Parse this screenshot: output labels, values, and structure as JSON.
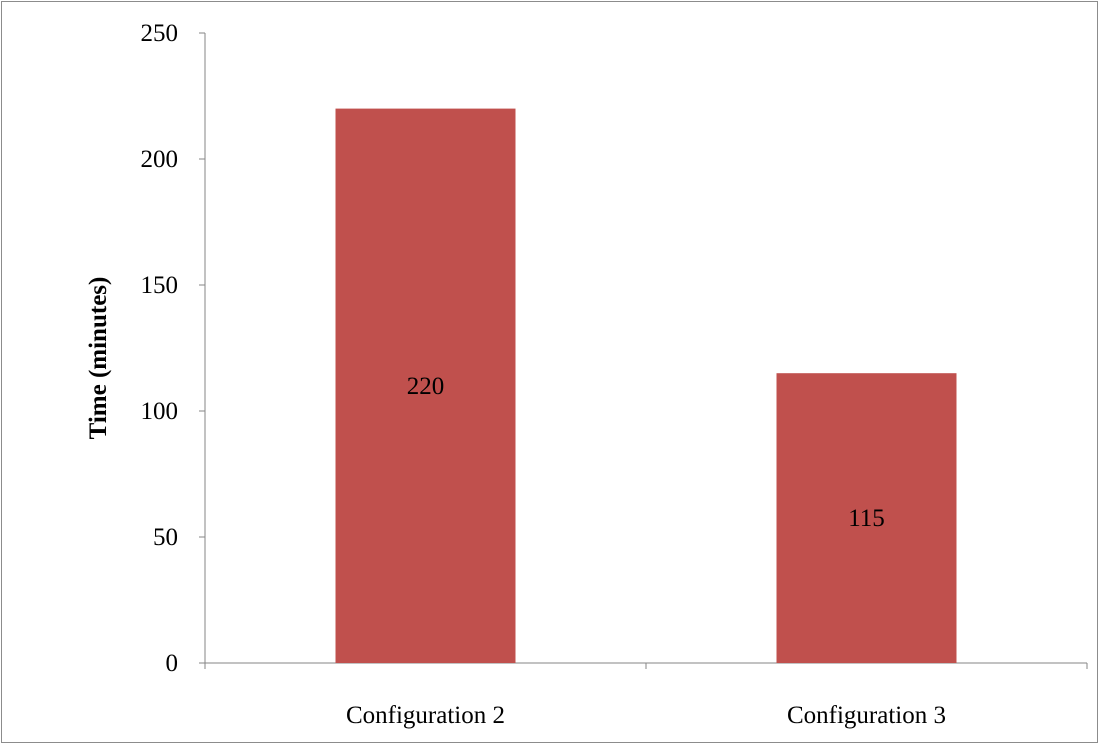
{
  "chart_data": {
    "type": "bar",
    "categories": [
      "Configuration 2",
      "Configuration 3"
    ],
    "values": [
      220,
      115
    ],
    "data_labels": [
      "220",
      "115"
    ],
    "title": "",
    "xlabel": "",
    "ylabel": "Time (minutes)",
    "ylim": [
      0,
      250
    ],
    "yticks": [
      0,
      50,
      100,
      150,
      200,
      250
    ],
    "grid": false,
    "legend": "none",
    "bar_color": "#c0504d"
  }
}
